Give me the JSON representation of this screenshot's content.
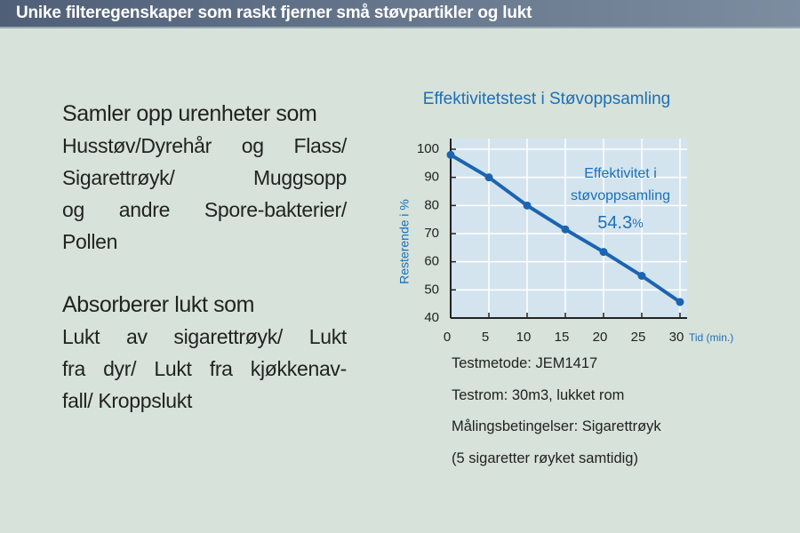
{
  "header": {
    "title": "Unike filteregenskaper som raskt fjerner små støvpartikler og lukt"
  },
  "sections": [
    {
      "heading": "Samler opp urenheter som",
      "lines": [
        "Husstøv/Dyrehår og Flass/",
        "Sigarettrøyk/ Muggsopp",
        "og andre Spore-bakterier/",
        "Pollen"
      ]
    },
    {
      "heading": "Absorberer lukt som",
      "lines": [
        "Lukt av sigarettrøyk/ Lukt",
        "fra dyr/ Lukt fra kjøkkenav-",
        "fall/ Kroppslukt"
      ]
    }
  ],
  "chart_data": {
    "type": "line",
    "title": "Effektivitetstest i Støvoppsamling",
    "x_label": "Tid (min.)",
    "y_label": "Resterende i %",
    "x": [
      0,
      5,
      10,
      15,
      20,
      25,
      30
    ],
    "values": [
      98,
      90,
      80,
      71.5,
      63.5,
      55,
      45.7
    ],
    "color": "#1c64b0",
    "xlim": [
      0,
      30
    ],
    "xticks": [
      0,
      5,
      10,
      15,
      20,
      25,
      30
    ],
    "ylim": [
      40,
      100
    ],
    "yticks": [
      40,
      50,
      60,
      70,
      80,
      90,
      100
    ],
    "grid": true,
    "annotation": {
      "lines": [
        "Effektivitet i",
        "støvoppsamling"
      ],
      "value": 54.3,
      "unit": "%"
    }
  },
  "notes": [
    "Testmetode: JEM1417",
    "Testrom: 30m3, lukket rom",
    "Målingsbetingelser: Sigarettrøyk",
    "(5 sigaretter røyket samtidig)"
  ]
}
